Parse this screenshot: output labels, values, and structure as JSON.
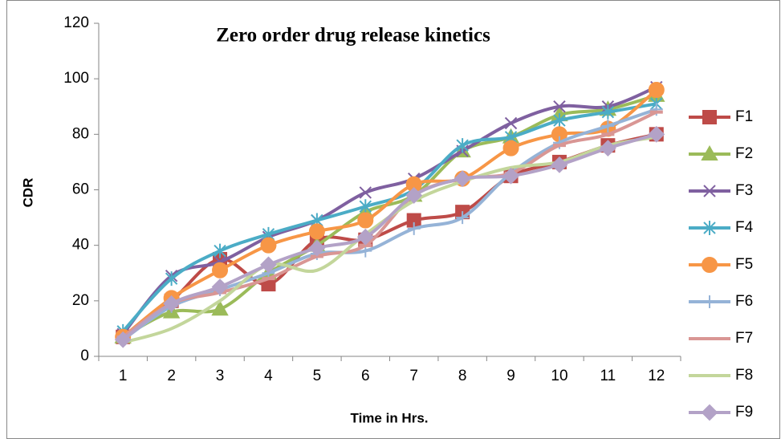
{
  "chart_data": {
    "type": "line",
    "title": "Zero order drug release kinetics",
    "x_label": "Time in Hrs.",
    "y_label": "CDR",
    "categories": [
      "1",
      "2",
      "3",
      "4",
      "5",
      "6",
      "7",
      "8",
      "9",
      "10",
      "11",
      "12"
    ],
    "ylim": [
      0,
      120
    ],
    "yticks": [
      0,
      20,
      40,
      60,
      80,
      100,
      120
    ],
    "grid": false,
    "smooth": true,
    "legend": "right",
    "series": [
      {
        "name": "F1",
        "color": "#be4b48",
        "marker": "square",
        "values": [
          7,
          20,
          35,
          26,
          42,
          42,
          49,
          52,
          65,
          70,
          76,
          80
        ]
      },
      {
        "name": "F2",
        "color": "#9bbb59",
        "marker": "triangle",
        "values": [
          7,
          16,
          17,
          30,
          40,
          52,
          58,
          74,
          79,
          87,
          89,
          94
        ]
      },
      {
        "name": "F3",
        "color": "#7f60a0",
        "marker": "x",
        "values": [
          8,
          29,
          34,
          43,
          49,
          59,
          64,
          74,
          84,
          90,
          90,
          97
        ]
      },
      {
        "name": "F4",
        "color": "#4bacc6",
        "marker": "star",
        "values": [
          9,
          28,
          38,
          44,
          49,
          54,
          60,
          76,
          79,
          85,
          88,
          91
        ]
      },
      {
        "name": "F5",
        "color": "#f79646",
        "marker": "circle",
        "values": [
          7,
          21,
          31,
          40,
          45,
          49,
          62,
          64,
          75,
          80,
          82,
          96
        ]
      },
      {
        "name": "F6",
        "color": "#95b3d7",
        "marker": "plus",
        "values": [
          6,
          18,
          24,
          30,
          37,
          38,
          46,
          50,
          66,
          77,
          83,
          89
        ]
      },
      {
        "name": "F7",
        "color": "#d99694",
        "marker": "dash",
        "values": [
          7,
          19,
          23,
          28,
          36,
          40,
          58,
          64,
          66,
          76,
          80,
          88
        ]
      },
      {
        "name": "F8",
        "color": "#c3d69b",
        "marker": "none",
        "values": [
          5,
          10,
          20,
          33,
          31,
          44,
          56,
          63,
          68,
          70,
          76,
          79
        ]
      },
      {
        "name": "F9",
        "color": "#b3a2c7",
        "marker": "diamond",
        "values": [
          6,
          19,
          25,
          33,
          39,
          43,
          58,
          64,
          65,
          69,
          75,
          80
        ]
      }
    ]
  }
}
